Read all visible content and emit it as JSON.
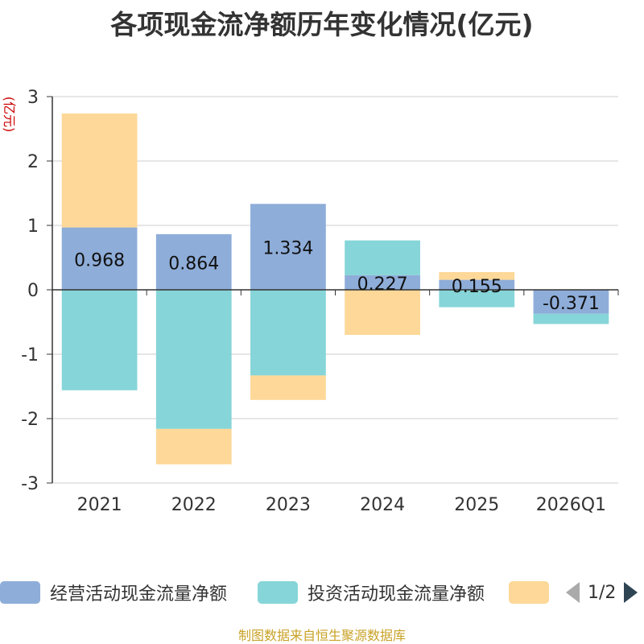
{
  "title": "各项现金流净额历年变化情况(亿元)",
  "source": "制图数据来自恒生聚源数据库",
  "pager": {
    "text": "1/2"
  },
  "chart_data": {
    "type": "bar",
    "stacked": true,
    "title": "各项现金流净额历年变化情况(亿元)",
    "ylabel": "(亿元)",
    "xlabel": "",
    "ylim": [
      -3,
      3
    ],
    "yticks": [
      3,
      2,
      1,
      0,
      -1,
      -2,
      -3
    ],
    "grid": true,
    "legend": "bottom",
    "categories": [
      "2021",
      "2022",
      "2023",
      "2024",
      "2025",
      "2026Q1"
    ],
    "series": [
      {
        "name": "经营活动现金流量净额",
        "color": "#8eadd9",
        "values": [
          0.968,
          0.864,
          1.334,
          0.227,
          0.155,
          -0.371
        ],
        "labels": [
          "0.968",
          "0.864",
          "1.334",
          "0.227",
          "0.155",
          "-0.371"
        ]
      },
      {
        "name": "投资活动现金流量净额",
        "color": "#86d5d8",
        "values": [
          -1.56,
          -2.16,
          -1.33,
          0.54,
          -0.27,
          -0.16
        ]
      },
      {
        "name": "",
        "color": "#fdd898",
        "values": [
          1.77,
          -0.55,
          -0.38,
          -0.7,
          0.12,
          0.0
        ]
      }
    ]
  }
}
